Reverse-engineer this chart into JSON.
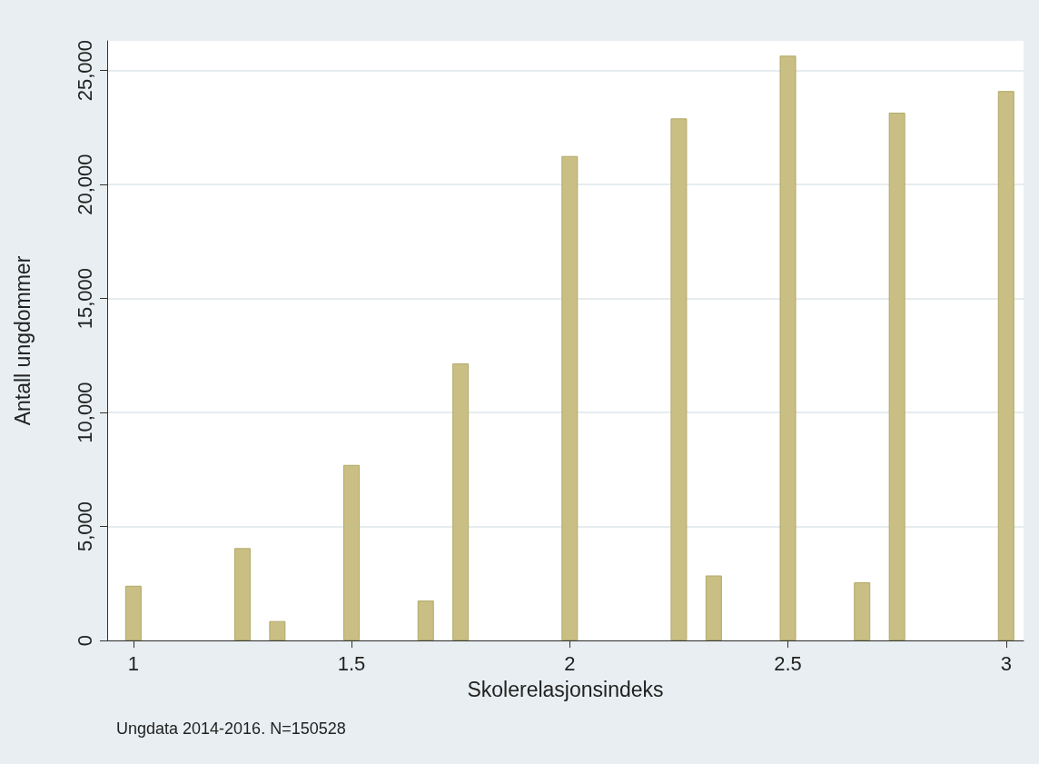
{
  "chart_data": {
    "type": "bar",
    "xlabel": "Skolerelasjonsindeks",
    "ylabel": "Antall ungdommer",
    "x": [
      1,
      1.25,
      1.33,
      1.5,
      1.67,
      1.75,
      2,
      2.25,
      2.33,
      2.5,
      2.67,
      2.75,
      3
    ],
    "values": [
      2400,
      4050,
      850,
      7700,
      1750,
      12150,
      21250,
      22900,
      2850,
      25650,
      2550,
      23150,
      24100
    ],
    "color": "#c9bf84",
    "xlim": [
      0.94,
      3.04
    ],
    "xticks": [
      1,
      1.5,
      2,
      2.5,
      3
    ],
    "ylim": [
      0,
      26300
    ],
    "yticks": [
      {
        "value": 0,
        "label": "0"
      },
      {
        "value": 5000,
        "label": "5,000"
      },
      {
        "value": 10000,
        "label": "10,000"
      },
      {
        "value": 15000,
        "label": "15,000"
      },
      {
        "value": 20000,
        "label": "20,000"
      },
      {
        "value": 25000,
        "label": "25,000"
      }
    ],
    "grid": "y",
    "annotations": [
      "Ungdata 2014-2016. N=150528"
    ]
  }
}
